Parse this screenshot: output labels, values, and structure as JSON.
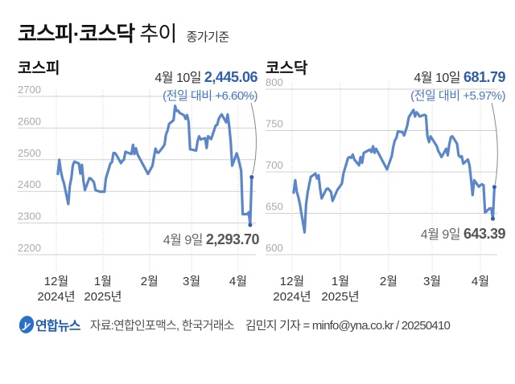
{
  "title": {
    "main": "코스피·코스닥",
    "trend": "추이",
    "sub": "종가기준"
  },
  "footer": {
    "logo": "연합뉴스",
    "source": "자료:연합인포맥스, 한국거래소",
    "credit": "김민지 기자 = minfo@yna.co.kr / 20250410"
  },
  "colors": {
    "line": "#5b87c9",
    "highlight": "#2e5fa8",
    "grid": "#d0d0d0",
    "tick": "#aaaaaa"
  },
  "chart_data": [
    {
      "type": "line",
      "title": "코스피",
      "ylim": [
        2200,
        2700
      ],
      "yticks": [
        2200,
        2300,
        2400,
        2500,
        2600,
        2700
      ],
      "grid": true,
      "xticks": [
        {
          "date": "2024-12-01",
          "label": "12월",
          "sub": "2024년"
        },
        {
          "date": "2025-01-01",
          "label": "1월",
          "sub": "2025년"
        },
        {
          "date": "2025-02-01",
          "label": "2월",
          "sub": ""
        },
        {
          "date": "2025-03-01",
          "label": "3월",
          "sub": ""
        },
        {
          "date": "2025-04-01",
          "label": "4월",
          "sub": ""
        }
      ],
      "annotations": {
        "high": {
          "date_label": "4월 10일",
          "value_label": "2,445.06",
          "change": "(전일 대비 +6.60%)"
        },
        "low": {
          "date_label": "4월 9일",
          "value_label": "2,293.70"
        }
      },
      "points": [
        [
          "2024-12-02",
          2455
        ],
        [
          "2024-12-03",
          2500
        ],
        [
          "2024-12-04",
          2464
        ],
        [
          "2024-12-05",
          2442
        ],
        [
          "2024-12-06",
          2428
        ],
        [
          "2024-12-09",
          2360
        ],
        [
          "2024-12-10",
          2418
        ],
        [
          "2024-12-11",
          2442
        ],
        [
          "2024-12-12",
          2482
        ],
        [
          "2024-12-13",
          2494
        ],
        [
          "2024-12-16",
          2488
        ],
        [
          "2024-12-17",
          2456
        ],
        [
          "2024-12-18",
          2484
        ],
        [
          "2024-12-19",
          2435
        ],
        [
          "2024-12-20",
          2404
        ],
        [
          "2024-12-23",
          2442
        ],
        [
          "2024-12-24",
          2440
        ],
        [
          "2024-12-26",
          2429
        ],
        [
          "2024-12-27",
          2404
        ],
        [
          "2024-12-30",
          2399
        ],
        [
          "2025-01-02",
          2399
        ],
        [
          "2025-01-03",
          2441
        ],
        [
          "2025-01-06",
          2488
        ],
        [
          "2025-01-07",
          2492
        ],
        [
          "2025-01-08",
          2521
        ],
        [
          "2025-01-09",
          2521
        ],
        [
          "2025-01-10",
          2515
        ],
        [
          "2025-01-13",
          2489
        ],
        [
          "2025-01-14",
          2497
        ],
        [
          "2025-01-15",
          2500
        ],
        [
          "2025-01-16",
          2525
        ],
        [
          "2025-01-17",
          2523
        ],
        [
          "2025-01-20",
          2518
        ],
        [
          "2025-01-21",
          2547
        ],
        [
          "2025-01-22",
          2518
        ],
        [
          "2025-01-23",
          2536
        ],
        [
          "2025-01-24",
          2517
        ],
        [
          "2025-01-31",
          2455
        ],
        [
          "2025-02-03",
          2481
        ],
        [
          "2025-02-04",
          2510
        ],
        [
          "2025-02-05",
          2535
        ],
        [
          "2025-02-06",
          2523
        ],
        [
          "2025-02-07",
          2522
        ],
        [
          "2025-02-10",
          2540
        ],
        [
          "2025-02-11",
          2548
        ],
        [
          "2025-02-12",
          2580
        ],
        [
          "2025-02-13",
          2592
        ],
        [
          "2025-02-14",
          2613
        ],
        [
          "2025-02-17",
          2625
        ],
        [
          "2025-02-18",
          2670
        ],
        [
          "2025-02-19",
          2654
        ],
        [
          "2025-02-20",
          2655
        ],
        [
          "2025-02-21",
          2648
        ],
        [
          "2025-02-24",
          2640
        ],
        [
          "2025-02-25",
          2629
        ],
        [
          "2025-02-26",
          2641
        ],
        [
          "2025-02-27",
          2620
        ],
        [
          "2025-02-28",
          2533
        ],
        [
          "2025-03-04",
          2529
        ],
        [
          "2025-03-05",
          2559
        ],
        [
          "2025-03-06",
          2574
        ],
        [
          "2025-03-07",
          2564
        ],
        [
          "2025-03-10",
          2568
        ],
        [
          "2025-03-11",
          2537
        ],
        [
          "2025-03-12",
          2574
        ],
        [
          "2025-03-13",
          2570
        ],
        [
          "2025-03-14",
          2565
        ],
        [
          "2025-03-17",
          2608
        ],
        [
          "2025-03-18",
          2610
        ],
        [
          "2025-03-19",
          2628
        ],
        [
          "2025-03-20",
          2637
        ],
        [
          "2025-03-21",
          2643
        ],
        [
          "2025-03-24",
          2618
        ],
        [
          "2025-03-25",
          2643
        ],
        [
          "2025-03-26",
          2607
        ],
        [
          "2025-03-27",
          2557
        ],
        [
          "2025-03-28",
          2481
        ],
        [
          "2025-03-31",
          2520
        ],
        [
          "2025-04-01",
          2505
        ],
        [
          "2025-04-02",
          2486
        ],
        [
          "2025-04-03",
          2465
        ],
        [
          "2025-04-04",
          2328
        ],
        [
          "2025-04-07",
          2328
        ],
        [
          "2025-04-08",
          2334
        ],
        [
          "2025-04-09",
          2293.7
        ],
        [
          "2025-04-10",
          2445.06
        ]
      ]
    },
    {
      "type": "line",
      "title": "코스닥",
      "ylim": [
        600,
        800
      ],
      "yticks": [
        600,
        650,
        700,
        750,
        800
      ],
      "grid": true,
      "xticks": [
        {
          "date": "2024-12-01",
          "label": "12월",
          "sub": "2024년"
        },
        {
          "date": "2025-01-01",
          "label": "1월",
          "sub": "2025년"
        },
        {
          "date": "2025-02-01",
          "label": "2월",
          "sub": ""
        },
        {
          "date": "2025-03-01",
          "label": "3월",
          "sub": ""
        },
        {
          "date": "2025-04-01",
          "label": "4월",
          "sub": ""
        }
      ],
      "annotations": {
        "high": {
          "date_label": "4월 10일",
          "value_label": "681.79",
          "change": "(전일 대비 +5.97%)"
        },
        "low": {
          "date_label": "4월 9일",
          "value_label": "643.39"
        }
      },
      "points": [
        [
          "2024-12-02",
          675
        ],
        [
          "2024-12-03",
          690
        ],
        [
          "2024-12-04",
          676
        ],
        [
          "2024-12-05",
          670
        ],
        [
          "2024-12-06",
          661
        ],
        [
          "2024-12-09",
          627
        ],
        [
          "2024-12-10",
          661
        ],
        [
          "2024-12-11",
          675
        ],
        [
          "2024-12-12",
          685
        ],
        [
          "2024-12-13",
          694
        ],
        [
          "2024-12-16",
          698
        ],
        [
          "2024-12-17",
          692
        ],
        [
          "2024-12-18",
          696
        ],
        [
          "2024-12-19",
          680
        ],
        [
          "2024-12-20",
          668
        ],
        [
          "2024-12-23",
          679
        ],
        [
          "2024-12-24",
          680
        ],
        [
          "2024-12-26",
          676
        ],
        [
          "2024-12-27",
          665
        ],
        [
          "2024-12-30",
          678
        ],
        [
          "2025-01-02",
          686
        ],
        [
          "2025-01-03",
          698
        ],
        [
          "2025-01-06",
          717
        ],
        [
          "2025-01-07",
          718
        ],
        [
          "2025-01-08",
          717
        ],
        [
          "2025-01-09",
          721
        ],
        [
          "2025-01-10",
          715
        ],
        [
          "2025-01-13",
          708
        ],
        [
          "2025-01-14",
          718
        ],
        [
          "2025-01-15",
          711
        ],
        [
          "2025-01-16",
          723
        ],
        [
          "2025-01-17",
          724
        ],
        [
          "2025-01-20",
          727
        ],
        [
          "2025-01-21",
          724
        ],
        [
          "2025-01-22",
          731
        ],
        [
          "2025-01-23",
          723
        ],
        [
          "2025-01-24",
          728
        ],
        [
          "2025-01-31",
          703
        ],
        [
          "2025-02-03",
          719
        ],
        [
          "2025-02-04",
          730
        ],
        [
          "2025-02-05",
          738
        ],
        [
          "2025-02-06",
          741
        ],
        [
          "2025-02-07",
          749
        ],
        [
          "2025-02-10",
          748
        ],
        [
          "2025-02-11",
          744
        ],
        [
          "2025-02-12",
          750
        ],
        [
          "2025-02-13",
          756
        ],
        [
          "2025-02-14",
          766
        ],
        [
          "2025-02-17",
          775
        ],
        [
          "2025-02-18",
          767
        ],
        [
          "2025-02-19",
          772
        ],
        [
          "2025-02-20",
          770
        ],
        [
          "2025-02-21",
          767
        ],
        [
          "2025-02-24",
          769
        ],
        [
          "2025-02-25",
          768
        ],
        [
          "2025-02-26",
          743
        ],
        [
          "2025-02-27",
          736
        ],
        [
          "2025-02-28",
          743
        ],
        [
          "2025-03-04",
          731
        ],
        [
          "2025-03-05",
          725
        ],
        [
          "2025-03-06",
          722
        ],
        [
          "2025-03-07",
          718
        ],
        [
          "2025-03-10",
          728
        ],
        [
          "2025-03-11",
          720
        ],
        [
          "2025-03-12",
          733
        ],
        [
          "2025-03-13",
          742
        ],
        [
          "2025-03-14",
          743
        ],
        [
          "2025-03-17",
          734
        ],
        [
          "2025-03-18",
          720
        ],
        [
          "2025-03-19",
          718
        ],
        [
          "2025-03-20",
          719
        ],
        [
          "2025-03-21",
          710
        ],
        [
          "2025-03-24",
          715
        ],
        [
          "2025-03-25",
          708
        ],
        [
          "2025-03-26",
          691
        ],
        [
          "2025-03-27",
          672
        ],
        [
          "2025-03-28",
          690
        ],
        [
          "2025-03-31",
          682
        ],
        [
          "2025-04-01",
          684
        ],
        [
          "2025-04-02",
          685
        ],
        [
          "2025-04-03",
          684
        ],
        [
          "2025-04-04",
          651
        ],
        [
          "2025-04-07",
          656
        ],
        [
          "2025-04-08",
          656
        ],
        [
          "2025-04-09",
          643.39
        ],
        [
          "2025-04-10",
          681.79
        ]
      ]
    }
  ]
}
